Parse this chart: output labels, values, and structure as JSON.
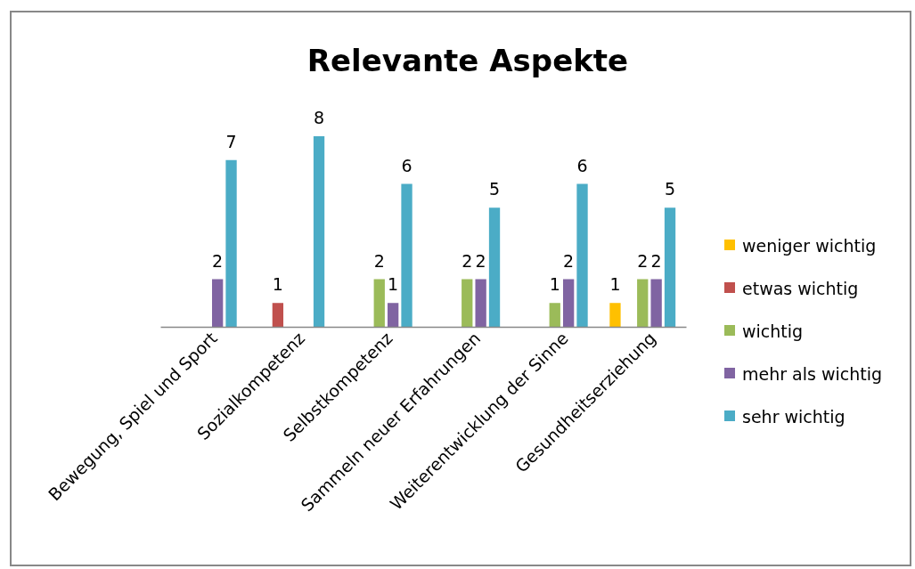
{
  "chart_data": {
    "type": "bar",
    "title": "Relevante Aspekte",
    "categories": [
      "Bewegung, Spiel und Sport",
      "Sozialkompetenz",
      "Selbstkompetenz",
      "Sammeln neuer Erfahrungen",
      "Weiterentwicklung der Sinne",
      "Gesundheitserziehung"
    ],
    "series": [
      {
        "name": "weniger wichtig",
        "color": "#ffc000",
        "values": [
          null,
          null,
          null,
          null,
          null,
          1
        ]
      },
      {
        "name": "etwas wichtig",
        "color": "#c0504d",
        "values": [
          null,
          1,
          null,
          null,
          null,
          null
        ]
      },
      {
        "name": "wichtig",
        "color": "#9bbb59",
        "values": [
          null,
          null,
          2,
          2,
          1,
          2
        ]
      },
      {
        "name": "mehr als wichtig",
        "color": "#8064a2",
        "values": [
          2,
          null,
          1,
          2,
          2,
          2
        ]
      },
      {
        "name": "sehr wichtig",
        "color": "#4bacc6",
        "values": [
          7,
          8,
          6,
          5,
          6,
          5
        ]
      }
    ],
    "data_labels": true,
    "legend": "right"
  }
}
